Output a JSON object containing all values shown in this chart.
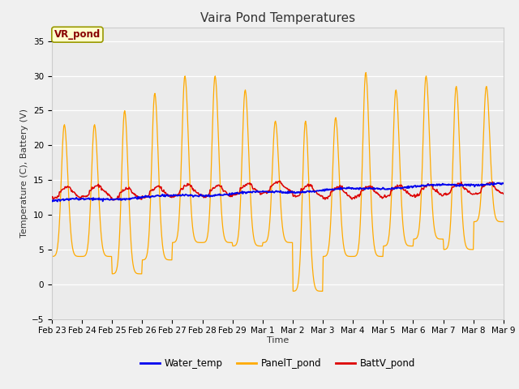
{
  "title": "Vaira Pond Temperatures",
  "xlabel": "Time",
  "ylabel": "Temperature (C), Battery (V)",
  "annotation": "VR_pond",
  "ylim": [
    -5,
    37
  ],
  "yticks": [
    -5,
    0,
    5,
    10,
    15,
    20,
    25,
    30,
    35
  ],
  "x_tick_labels": [
    "Feb 23",
    "Feb 24",
    "Feb 25",
    "Feb 26",
    "Feb 27",
    "Feb 28",
    "Feb 29",
    "Mar 1",
    "Mar 2",
    "Mar 3",
    "Mar 4",
    "Mar 5",
    "Mar 6",
    "Mar 7",
    "Mar 8",
    "Mar 9"
  ],
  "water_color": "#0000ee",
  "panel_color": "#ffaa00",
  "batt_color": "#dd0000",
  "bg_color": "#ebebeb",
  "grid_color": "#ffffff",
  "legend_labels": [
    "Water_temp",
    "PanelT_pond",
    "BattV_pond"
  ],
  "title_fontsize": 11,
  "axis_fontsize": 8,
  "tick_fontsize": 7.5,
  "annot_facecolor": "#ffffcc",
  "annot_edgecolor": "#999900",
  "annot_textcolor": "#880000"
}
